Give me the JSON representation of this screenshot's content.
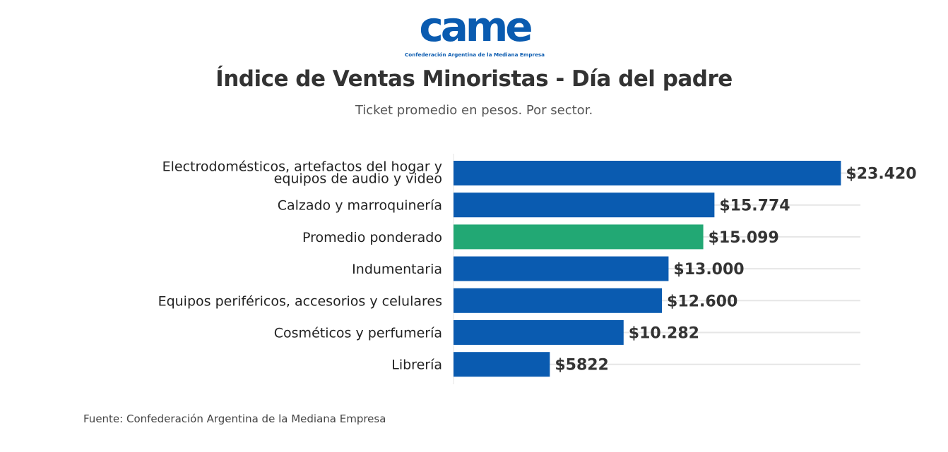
{
  "logo": {
    "wordmark": "came",
    "tagline": "Confederación Argentina de la Mediana Empresa",
    "color": "#0a5bb0"
  },
  "header": {
    "title": "Índice de Ventas Minoristas - Día del padre",
    "subtitle": "Ticket promedio en pesos. Por sector."
  },
  "footer": {
    "source": "Fuente: Confederación Argentina de la Mediana Empresa"
  },
  "colors": {
    "bar_default": "#0a5bb0",
    "bar_highlight": "#22a874",
    "grid": "#e6e6e6",
    "label_outside": "#333333",
    "label_inside": "#ffffff"
  },
  "chart_data": {
    "type": "bar",
    "orientation": "horizontal",
    "title": "Índice de Ventas Minoristas - Día del padre",
    "subtitle": "Ticket promedio en pesos. Por sector.",
    "categories": [
      "Electrodomésticos, artefactos del hogar y equipos de audio y video",
      "Calzado y marroquinería",
      "Promedio ponderado",
      "Indumentaria",
      "Equipos periféricos, accesorios y celulares",
      "Cosméticos y perfumería",
      "Librería"
    ],
    "values": [
      23420,
      15774,
      15099,
      13000,
      12600,
      10282,
      5822
    ],
    "value_labels": [
      "$23.420",
      "$15.774",
      "$15.099",
      "$13.000",
      "$12.600",
      "$10.282",
      "$5822"
    ],
    "highlight_index": 2,
    "xlim": [
      0,
      24000
    ],
    "grid": true,
    "legend": "none"
  }
}
